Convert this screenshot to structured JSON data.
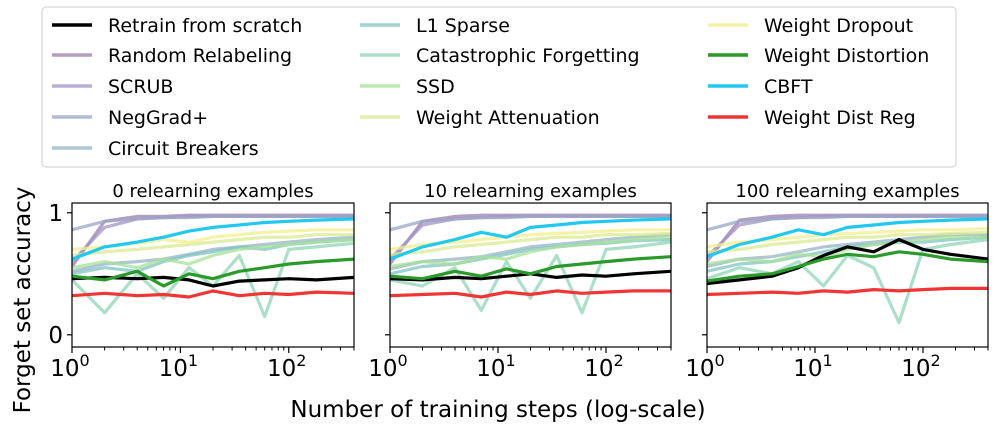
{
  "figure": {
    "ylabel": "Forget set accuracy",
    "xlabel": "Number of training steps (log-scale)"
  },
  "legend": [
    {
      "label": "Retrain from scratch",
      "color": "#000000",
      "opacity": 1.0
    },
    {
      "label": "Random Relabeling",
      "color": "#9e7cb0",
      "opacity": 0.75
    },
    {
      "label": "SCRUB",
      "color": "#a293c4",
      "opacity": 0.75
    },
    {
      "label": "NegGrad+",
      "color": "#9aa5c4",
      "opacity": 0.75
    },
    {
      "label": "Circuit Breakers",
      "color": "#93b4c4",
      "opacity": 0.75
    },
    {
      "label": "L1 Sparse",
      "color": "#7fc4c2",
      "opacity": 0.75
    },
    {
      "label": "Catastrophic Forgetting",
      "color": "#8fd4b4",
      "opacity": 0.75
    },
    {
      "label": "SSD",
      "color": "#a8e09a",
      "opacity": 0.75
    },
    {
      "label": "Weight Attenuation",
      "color": "#d9e98f",
      "opacity": 0.75
    },
    {
      "label": "Weight Dropout",
      "color": "#f3ef8c",
      "opacity": 0.75
    },
    {
      "label": "Weight Distortion",
      "color": "#2a9a2a",
      "opacity": 1.0
    },
    {
      "label": "CBFT",
      "color": "#22c8f0",
      "opacity": 1.0
    },
    {
      "label": "Weight Dist Reg",
      "color": "#f03535",
      "opacity": 1.0
    }
  ],
  "chart_data": [
    {
      "type": "line",
      "title": "0 relearning examples",
      "xscale": "log",
      "xlim": [
        1,
        400
      ],
      "ylim": [
        -0.1,
        1.08
      ],
      "xticks": [
        {
          "value": 1,
          "base": "10",
          "exp": "0"
        },
        {
          "value": 10,
          "base": "10",
          "exp": "1"
        },
        {
          "value": 100,
          "base": "10",
          "exp": "2"
        }
      ],
      "yticks": [
        {
          "value": 0,
          "label": "0"
        },
        {
          "value": 1,
          "label": "1"
        }
      ],
      "x": [
        1,
        2,
        4,
        7,
        12,
        20,
        35,
        60,
        100,
        180,
        400
      ],
      "series": [
        {
          "name": "Retrain from scratch",
          "values": [
            0.46,
            0.47,
            0.46,
            0.47,
            0.45,
            0.4,
            0.44,
            0.45,
            0.46,
            0.45,
            0.47
          ]
        },
        {
          "name": "Random Relabeling",
          "values": [
            0.56,
            0.93,
            0.97,
            0.97,
            0.98,
            0.98,
            0.98,
            0.98,
            0.98,
            0.98,
            0.98
          ]
        },
        {
          "name": "SCRUB",
          "values": [
            0.6,
            0.88,
            0.95,
            0.96,
            0.97,
            0.97,
            0.97,
            0.97,
            0.97,
            0.97,
            0.97
          ]
        },
        {
          "name": "NegGrad+",
          "values": [
            0.86,
            0.93,
            0.95,
            0.96,
            0.96,
            0.97,
            0.97,
            0.97,
            0.97,
            0.97,
            0.97
          ]
        },
        {
          "name": "Circuit Breakers",
          "values": [
            0.52,
            0.58,
            0.6,
            0.62,
            0.66,
            0.7,
            0.72,
            0.74,
            0.76,
            0.78,
            0.8
          ]
        },
        {
          "name": "L1 Sparse",
          "values": [
            0.5,
            0.55,
            0.52,
            0.6,
            0.65,
            0.68,
            0.72,
            0.7,
            0.74,
            0.76,
            0.78
          ]
        },
        {
          "name": "Catastrophic Forgetting",
          "values": [
            0.45,
            0.18,
            0.5,
            0.3,
            0.55,
            0.4,
            0.65,
            0.15,
            0.7,
            0.72,
            0.75
          ]
        },
        {
          "name": "SSD",
          "values": [
            0.55,
            0.6,
            0.55,
            0.62,
            0.58,
            0.65,
            0.7,
            0.72,
            0.74,
            0.76,
            0.78
          ]
        },
        {
          "name": "Weight Attenuation",
          "values": [
            0.65,
            0.68,
            0.7,
            0.72,
            0.74,
            0.76,
            0.78,
            0.8,
            0.8,
            0.82,
            0.82
          ]
        },
        {
          "name": "Weight Dropout",
          "values": [
            0.7,
            0.72,
            0.75,
            0.78,
            0.76,
            0.8,
            0.82,
            0.84,
            0.85,
            0.86,
            0.86
          ]
        },
        {
          "name": "Weight Distortion",
          "values": [
            0.48,
            0.45,
            0.52,
            0.4,
            0.5,
            0.46,
            0.52,
            0.55,
            0.58,
            0.6,
            0.62
          ]
        },
        {
          "name": "CBFT",
          "values": [
            0.62,
            0.72,
            0.76,
            0.8,
            0.85,
            0.88,
            0.9,
            0.92,
            0.93,
            0.94,
            0.95
          ]
        },
        {
          "name": "Weight Dist Reg",
          "values": [
            0.32,
            0.34,
            0.32,
            0.33,
            0.31,
            0.36,
            0.32,
            0.34,
            0.33,
            0.35,
            0.34
          ]
        }
      ]
    },
    {
      "type": "line",
      "title": "10 relearning examples",
      "xscale": "log",
      "xlim": [
        1,
        400
      ],
      "ylim": [
        -0.1,
        1.08
      ],
      "xticks": [
        {
          "value": 1,
          "base": "10",
          "exp": "0"
        },
        {
          "value": 10,
          "base": "10",
          "exp": "1"
        },
        {
          "value": 100,
          "base": "10",
          "exp": "2"
        }
      ],
      "yticks": [
        {
          "value": 0,
          "label": ""
        },
        {
          "value": 1,
          "label": ""
        }
      ],
      "x": [
        1,
        2,
        4,
        7,
        12,
        20,
        35,
        60,
        100,
        180,
        400
      ],
      "series": [
        {
          "name": "Retrain from scratch",
          "values": [
            0.46,
            0.45,
            0.47,
            0.46,
            0.48,
            0.5,
            0.47,
            0.49,
            0.48,
            0.5,
            0.52
          ]
        },
        {
          "name": "Random Relabeling",
          "values": [
            0.58,
            0.93,
            0.97,
            0.98,
            0.98,
            0.98,
            0.98,
            0.98,
            0.98,
            0.98,
            0.98
          ]
        },
        {
          "name": "SCRUB",
          "values": [
            0.62,
            0.9,
            0.95,
            0.96,
            0.97,
            0.97,
            0.97,
            0.97,
            0.97,
            0.97,
            0.97
          ]
        },
        {
          "name": "NegGrad+",
          "values": [
            0.86,
            0.93,
            0.95,
            0.96,
            0.96,
            0.97,
            0.97,
            0.97,
            0.97,
            0.97,
            0.97
          ]
        },
        {
          "name": "Circuit Breakers",
          "values": [
            0.54,
            0.6,
            0.62,
            0.64,
            0.68,
            0.72,
            0.74,
            0.76,
            0.78,
            0.8,
            0.82
          ]
        },
        {
          "name": "L1 Sparse",
          "values": [
            0.5,
            0.56,
            0.58,
            0.62,
            0.66,
            0.7,
            0.72,
            0.74,
            0.75,
            0.77,
            0.78
          ]
        },
        {
          "name": "Catastrophic Forgetting",
          "values": [
            0.45,
            0.4,
            0.55,
            0.2,
            0.6,
            0.3,
            0.65,
            0.18,
            0.7,
            0.72,
            0.76
          ]
        },
        {
          "name": "SSD",
          "values": [
            0.56,
            0.6,
            0.58,
            0.64,
            0.62,
            0.68,
            0.72,
            0.74,
            0.76,
            0.78,
            0.8
          ]
        },
        {
          "name": "Weight Attenuation",
          "values": [
            0.66,
            0.68,
            0.72,
            0.74,
            0.76,
            0.78,
            0.8,
            0.8,
            0.82,
            0.82,
            0.83
          ]
        },
        {
          "name": "Weight Dropout",
          "values": [
            0.7,
            0.74,
            0.76,
            0.78,
            0.8,
            0.82,
            0.83,
            0.84,
            0.85,
            0.86,
            0.86
          ]
        },
        {
          "name": "Weight Distortion",
          "values": [
            0.48,
            0.46,
            0.52,
            0.48,
            0.54,
            0.5,
            0.56,
            0.58,
            0.6,
            0.62,
            0.64
          ]
        },
        {
          "name": "CBFT",
          "values": [
            0.62,
            0.72,
            0.78,
            0.84,
            0.8,
            0.88,
            0.9,
            0.92,
            0.93,
            0.94,
            0.95
          ]
        },
        {
          "name": "Weight Dist Reg",
          "values": [
            0.32,
            0.33,
            0.34,
            0.31,
            0.35,
            0.33,
            0.36,
            0.34,
            0.35,
            0.36,
            0.36
          ]
        }
      ]
    },
    {
      "type": "line",
      "title": "100 relearning examples",
      "xscale": "log",
      "xlim": [
        1,
        400
      ],
      "ylim": [
        -0.1,
        1.08
      ],
      "xticks": [
        {
          "value": 1,
          "base": "10",
          "exp": "0"
        },
        {
          "value": 10,
          "base": "10",
          "exp": "1"
        },
        {
          "value": 100,
          "base": "10",
          "exp": "2"
        }
      ],
      "yticks": [
        {
          "value": 0,
          "label": ""
        },
        {
          "value": 1,
          "label": ""
        }
      ],
      "x": [
        1,
        2,
        4,
        7,
        12,
        20,
        35,
        60,
        100,
        180,
        400
      ],
      "series": [
        {
          "name": "Retrain from scratch",
          "values": [
            0.42,
            0.45,
            0.48,
            0.55,
            0.65,
            0.72,
            0.68,
            0.78,
            0.7,
            0.66,
            0.62
          ]
        },
        {
          "name": "Random Relabeling",
          "values": [
            0.6,
            0.94,
            0.97,
            0.98,
            0.98,
            0.98,
            0.98,
            0.98,
            0.98,
            0.98,
            0.98
          ]
        },
        {
          "name": "SCRUB",
          "values": [
            0.64,
            0.9,
            0.95,
            0.96,
            0.97,
            0.97,
            0.97,
            0.97,
            0.97,
            0.97,
            0.97
          ]
        },
        {
          "name": "NegGrad+",
          "values": [
            0.86,
            0.93,
            0.95,
            0.96,
            0.96,
            0.97,
            0.97,
            0.97,
            0.97,
            0.97,
            0.97
          ]
        },
        {
          "name": "Circuit Breakers",
          "values": [
            0.56,
            0.62,
            0.64,
            0.68,
            0.72,
            0.74,
            0.76,
            0.78,
            0.8,
            0.82,
            0.82
          ]
        },
        {
          "name": "L1 Sparse",
          "values": [
            0.52,
            0.58,
            0.6,
            0.64,
            0.68,
            0.72,
            0.74,
            0.76,
            0.76,
            0.78,
            0.8
          ]
        },
        {
          "name": "Catastrophic Forgetting",
          "values": [
            0.46,
            0.55,
            0.5,
            0.6,
            0.4,
            0.65,
            0.55,
            0.1,
            0.7,
            0.74,
            0.78
          ]
        },
        {
          "name": "SSD",
          "values": [
            0.58,
            0.62,
            0.6,
            0.66,
            0.64,
            0.7,
            0.74,
            0.76,
            0.78,
            0.8,
            0.8
          ]
        },
        {
          "name": "Weight Attenuation",
          "values": [
            0.68,
            0.7,
            0.74,
            0.76,
            0.78,
            0.8,
            0.8,
            0.82,
            0.82,
            0.83,
            0.84
          ]
        },
        {
          "name": "Weight Dropout",
          "values": [
            0.72,
            0.76,
            0.78,
            0.8,
            0.82,
            0.83,
            0.84,
            0.85,
            0.86,
            0.86,
            0.87
          ]
        },
        {
          "name": "Weight Distortion",
          "values": [
            0.44,
            0.48,
            0.5,
            0.56,
            0.62,
            0.66,
            0.64,
            0.68,
            0.66,
            0.62,
            0.6
          ]
        },
        {
          "name": "CBFT",
          "values": [
            0.64,
            0.74,
            0.8,
            0.86,
            0.82,
            0.88,
            0.9,
            0.92,
            0.93,
            0.94,
            0.95
          ]
        },
        {
          "name": "Weight Dist Reg",
          "values": [
            0.33,
            0.34,
            0.35,
            0.34,
            0.36,
            0.35,
            0.37,
            0.36,
            0.37,
            0.38,
            0.38
          ]
        }
      ]
    }
  ]
}
